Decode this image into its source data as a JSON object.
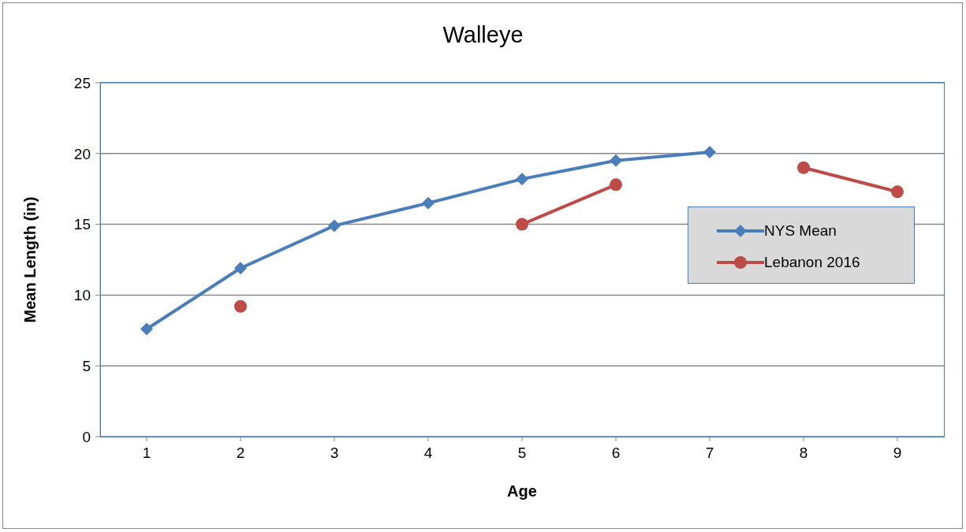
{
  "chart_data": {
    "type": "line",
    "title": "Walleye",
    "xlabel": "Age",
    "ylabel": "Mean Length (in)",
    "categories": [
      "1",
      "2",
      "3",
      "4",
      "5",
      "6",
      "7",
      "8",
      "9"
    ],
    "series": [
      {
        "name": "NYS Mean",
        "color": "#4a7ebb",
        "marker": "diamond",
        "values": [
          7.6,
          11.9,
          14.9,
          16.5,
          18.2,
          19.5,
          20.1,
          null,
          null
        ]
      },
      {
        "name": "Lebanon 2016",
        "color": "#be4b48",
        "marker": "circle",
        "values": [
          null,
          9.2,
          null,
          null,
          15.0,
          17.8,
          null,
          19.0,
          17.3
        ]
      }
    ],
    "ylim": [
      0,
      25
    ],
    "yticks": [
      0,
      5,
      10,
      15,
      20,
      25
    ],
    "grid": "y",
    "legend": "right"
  }
}
